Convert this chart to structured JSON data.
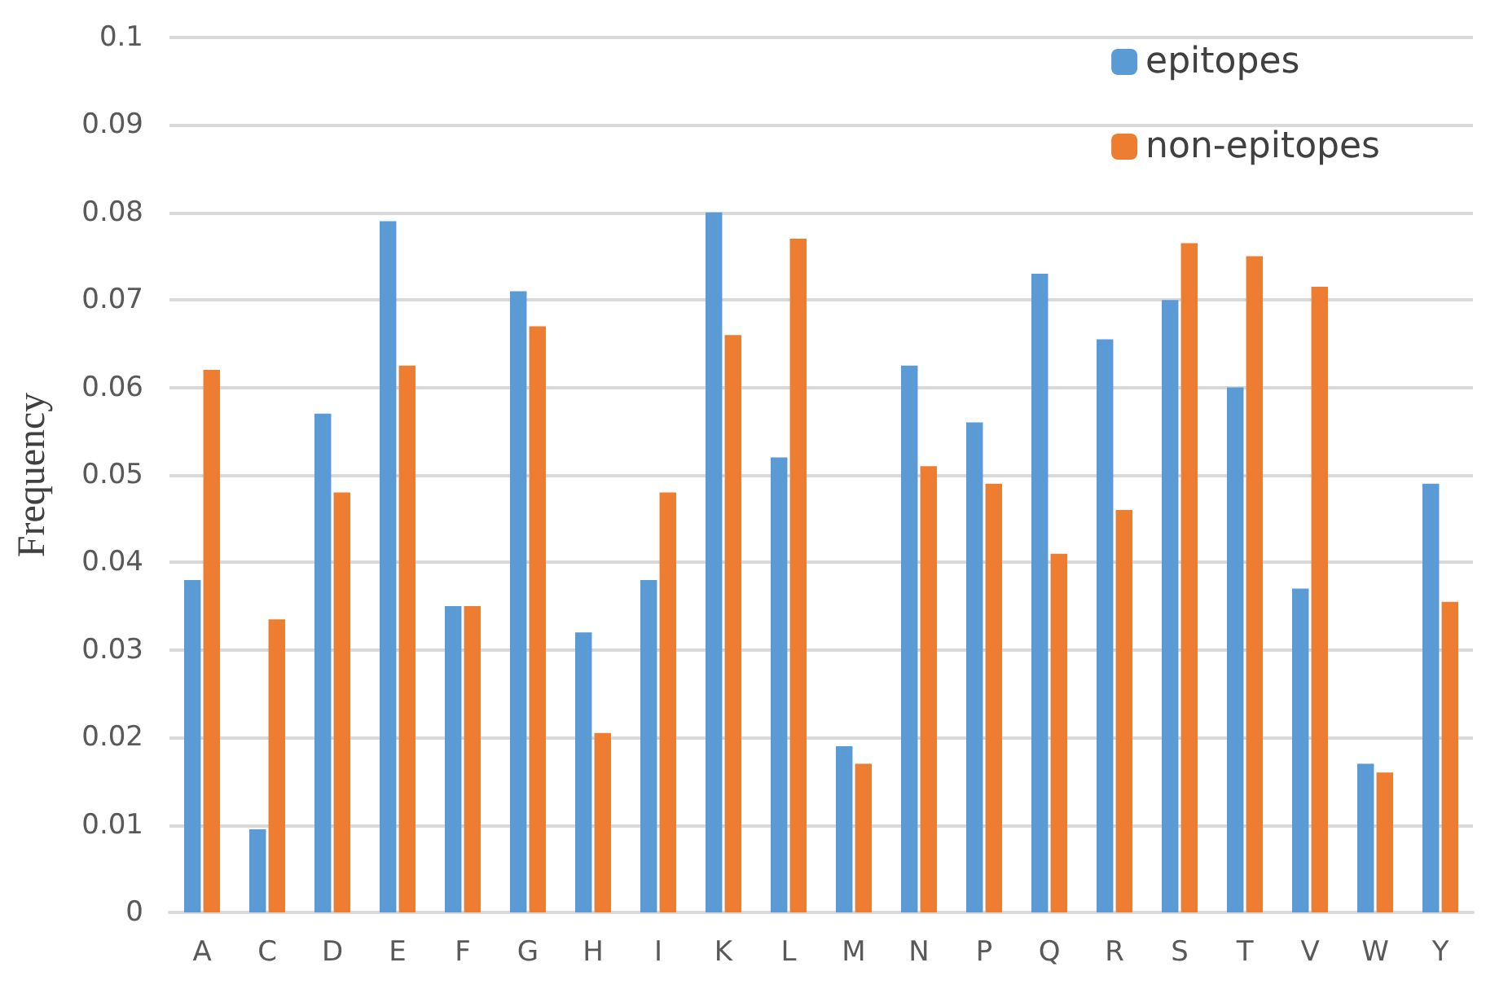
{
  "chart_data": {
    "type": "bar",
    "ylabel": "Frequency",
    "categories": [
      "A",
      "C",
      "D",
      "E",
      "F",
      "G",
      "H",
      "I",
      "K",
      "L",
      "M",
      "N",
      "P",
      "Q",
      "R",
      "S",
      "T",
      "V",
      "W",
      "Y"
    ],
    "series": [
      {
        "name": "epitopes",
        "color": "#5b9bd5",
        "values": [
          0.038,
          0.0095,
          0.057,
          0.079,
          0.035,
          0.071,
          0.032,
          0.038,
          0.08,
          0.052,
          0.019,
          0.0625,
          0.056,
          0.073,
          0.0655,
          0.07,
          0.06,
          0.037,
          0.017,
          0.049
        ]
      },
      {
        "name": "non-epitopes",
        "color": "#ed7d31",
        "values": [
          0.062,
          0.0335,
          0.048,
          0.0625,
          0.035,
          0.067,
          0.0205,
          0.048,
          0.066,
          0.077,
          0.017,
          0.051,
          0.049,
          0.041,
          0.046,
          0.0765,
          0.075,
          0.0715,
          0.016,
          0.0355
        ]
      }
    ],
    "ylim": [
      0,
      0.1
    ],
    "yticks": [
      0,
      0.01,
      0.02,
      0.03,
      0.04,
      0.05,
      0.06,
      0.07,
      0.08,
      0.09,
      0.1
    ],
    "grid": "y",
    "legend": "top right"
  }
}
